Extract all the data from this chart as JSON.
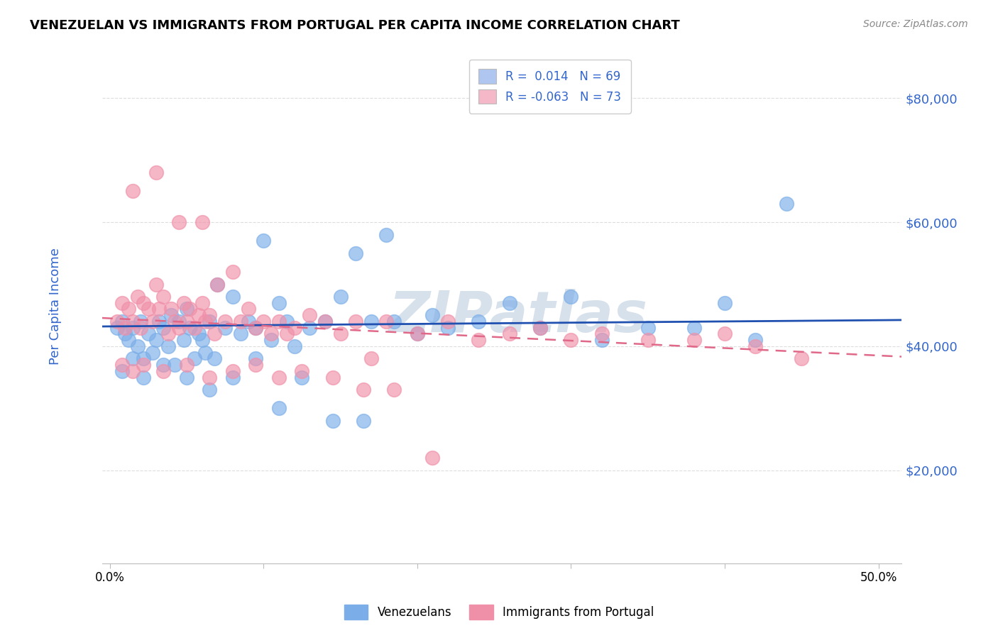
{
  "title": "VENEZUELAN VS IMMIGRANTS FROM PORTUGAL PER CAPITA INCOME CORRELATION CHART",
  "source": "Source: ZipAtlas.com",
  "ylabel": "Per Capita Income",
  "ytick_labels": [
    "$20,000",
    "$40,000",
    "$60,000",
    "$80,000"
  ],
  "ytick_values": [
    20000,
    40000,
    60000,
    80000
  ],
  "ymin": 5000,
  "ymax": 88000,
  "xmin": -0.005,
  "xmax": 0.515,
  "legend_entries": [
    {
      "color": "#aec6f0",
      "R": "0.014",
      "N": "69",
      "label": "Venezuelans"
    },
    {
      "color": "#f4b8c8",
      "R": "-0.063",
      "N": "73",
      "label": "Immigrants from Portugal"
    }
  ],
  "blue_color": "#7baee8",
  "pink_color": "#f090a8",
  "blue_line_color": "#2050b0",
  "pink_line_color": "#e06888",
  "watermark": "ZIPatlas",
  "watermark_color": "#d0dce8",
  "blue_scatter_x": [
    0.005,
    0.008,
    0.01,
    0.012,
    0.015,
    0.018,
    0.02,
    0.022,
    0.025,
    0.028,
    0.03,
    0.032,
    0.035,
    0.038,
    0.04,
    0.042,
    0.045,
    0.048,
    0.05,
    0.052,
    0.055,
    0.058,
    0.06,
    0.062,
    0.065,
    0.068,
    0.07,
    0.075,
    0.08,
    0.085,
    0.09,
    0.095,
    0.1,
    0.105,
    0.11,
    0.115,
    0.12,
    0.13,
    0.14,
    0.15,
    0.16,
    0.17,
    0.18,
    0.2,
    0.22,
    0.24,
    0.26,
    0.28,
    0.3,
    0.32,
    0.35,
    0.38,
    0.4,
    0.42,
    0.44,
    0.008,
    0.015,
    0.022,
    0.035,
    0.05,
    0.065,
    0.08,
    0.095,
    0.11,
    0.125,
    0.145,
    0.165,
    0.185,
    0.21
  ],
  "blue_scatter_y": [
    43000,
    44000,
    42000,
    41000,
    43000,
    40000,
    44000,
    38000,
    42000,
    39000,
    41000,
    44000,
    43000,
    40000,
    45000,
    37000,
    44000,
    41000,
    46000,
    43000,
    38000,
    42000,
    41000,
    39000,
    44000,
    38000,
    50000,
    43000,
    48000,
    42000,
    44000,
    43000,
    57000,
    41000,
    47000,
    44000,
    40000,
    43000,
    44000,
    48000,
    55000,
    44000,
    58000,
    42000,
    43000,
    44000,
    47000,
    43000,
    48000,
    41000,
    43000,
    43000,
    47000,
    41000,
    63000,
    36000,
    38000,
    35000,
    37000,
    35000,
    33000,
    35000,
    38000,
    30000,
    35000,
    28000,
    28000,
    44000,
    45000
  ],
  "pink_scatter_x": [
    0.005,
    0.008,
    0.01,
    0.012,
    0.015,
    0.018,
    0.02,
    0.022,
    0.025,
    0.028,
    0.03,
    0.032,
    0.035,
    0.038,
    0.04,
    0.042,
    0.045,
    0.048,
    0.05,
    0.052,
    0.055,
    0.058,
    0.06,
    0.062,
    0.065,
    0.068,
    0.07,
    0.075,
    0.08,
    0.085,
    0.09,
    0.095,
    0.1,
    0.105,
    0.11,
    0.115,
    0.12,
    0.13,
    0.14,
    0.15,
    0.16,
    0.17,
    0.18,
    0.2,
    0.22,
    0.24,
    0.26,
    0.28,
    0.3,
    0.32,
    0.35,
    0.38,
    0.4,
    0.42,
    0.45,
    0.008,
    0.015,
    0.022,
    0.035,
    0.05,
    0.065,
    0.08,
    0.095,
    0.11,
    0.125,
    0.145,
    0.165,
    0.185,
    0.21,
    0.015,
    0.03,
    0.045,
    0.06
  ],
  "pink_scatter_y": [
    44000,
    47000,
    43000,
    46000,
    44000,
    48000,
    43000,
    47000,
    46000,
    44000,
    50000,
    46000,
    48000,
    42000,
    46000,
    44000,
    43000,
    47000,
    44000,
    46000,
    43000,
    45000,
    47000,
    44000,
    45000,
    42000,
    50000,
    44000,
    52000,
    44000,
    46000,
    43000,
    44000,
    42000,
    44000,
    42000,
    43000,
    45000,
    44000,
    42000,
    44000,
    38000,
    44000,
    42000,
    44000,
    41000,
    42000,
    43000,
    41000,
    42000,
    41000,
    41000,
    42000,
    40000,
    38000,
    37000,
    36000,
    37000,
    36000,
    37000,
    35000,
    36000,
    37000,
    35000,
    36000,
    35000,
    33000,
    33000,
    22000,
    65000,
    68000,
    60000,
    60000
  ]
}
